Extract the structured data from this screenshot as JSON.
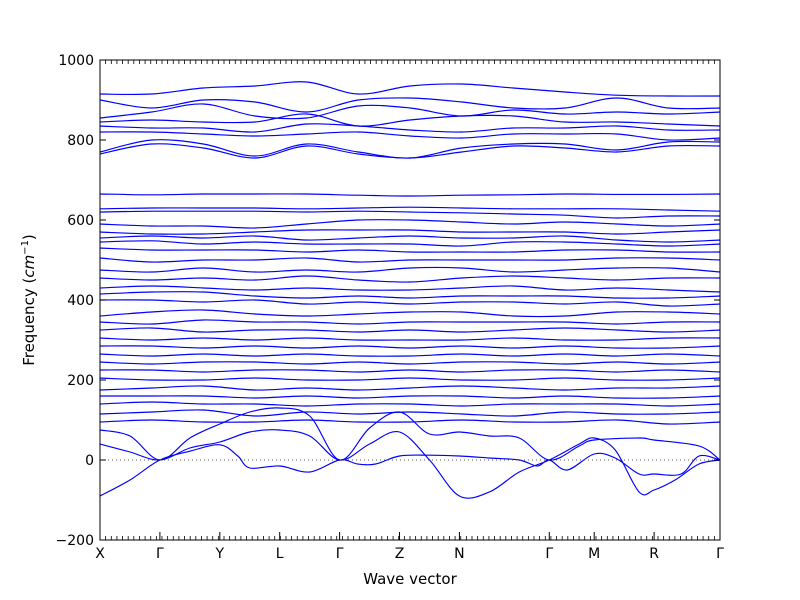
{
  "chart_data": {
    "type": "line",
    "xlabel": "Wave vector",
    "ylabel": "Frequency ",
    "ylabel_unit": "cm",
    "ylabel_unit_sup": "−1",
    "ylim": [
      -200,
      1000
    ],
    "yticks": [
      -200,
      0,
      200,
      400,
      600,
      800,
      1000
    ],
    "ytick_labels": [
      "−200",
      "0",
      "200",
      "400",
      "600",
      "800",
      "1000"
    ],
    "high_symmetry_points": [
      {
        "label": "X",
        "pos": 0
      },
      {
        "label": "Γ",
        "pos": 1
      },
      {
        "label": "Y",
        "pos": 2
      },
      {
        "label": "L",
        "pos": 3
      },
      {
        "label": "Γ",
        "pos": 4
      },
      {
        "label": "Z",
        "pos": 5
      },
      {
        "label": "N",
        "pos": 6
      },
      {
        "label": "Γ",
        "pos": 7.5
      },
      {
        "label": "M",
        "pos": 8.25
      },
      {
        "label": "R",
        "pos": 9.25
      },
      {
        "label": "Γ",
        "pos": 10.35
      }
    ],
    "zero_line": 0,
    "line_color": "#0000ff",
    "grid": false,
    "acoustic_branches": [
      {
        "x": [
          0,
          0.5,
          1,
          1.5,
          2,
          2.3,
          2.5,
          3,
          3.5,
          4,
          4.3,
          4.6,
          5,
          5.5,
          6,
          6.5,
          7,
          7.3,
          7.5,
          7.8,
          8.25,
          8.6,
          9,
          9.25,
          9.7,
          10,
          10.35
        ],
        "y": [
          -90,
          -50,
          0,
          22,
          38,
          10,
          -20,
          -15,
          -30,
          0,
          -10,
          -10,
          10,
          12,
          10,
          5,
          0,
          -15,
          0,
          -25,
          15,
          5,
          -35,
          -35,
          -35,
          10,
          0
        ]
      },
      {
        "x": [
          0,
          0.5,
          1,
          1.5,
          2,
          2.5,
          3,
          3.5,
          4,
          4.5,
          5,
          5.5,
          6,
          6.5,
          7,
          7.5,
          8,
          8.25,
          8.6,
          9,
          9.25,
          9.6,
          10,
          10.35
        ],
        "y": [
          40,
          20,
          0,
          30,
          45,
          70,
          75,
          60,
          0,
          40,
          70,
          0,
          -90,
          -80,
          -30,
          0,
          40,
          55,
          25,
          -80,
          -75,
          -50,
          -10,
          0
        ]
      },
      {
        "x": [
          0,
          0.5,
          1,
          1.5,
          2,
          2.5,
          3,
          3.5,
          4,
          4.5,
          5,
          5.5,
          6,
          6.5,
          7,
          7.5,
          8,
          8.25,
          9,
          9.25,
          10,
          10.35
        ],
        "y": [
          75,
          60,
          0,
          55,
          90,
          120,
          130,
          110,
          0,
          80,
          120,
          65,
          70,
          60,
          55,
          0,
          35,
          50,
          55,
          50,
          35,
          0
        ]
      }
    ],
    "optical_bands": [
      [
        -1,
        915,
        915,
        930,
        935,
        945,
        915,
        935,
        940,
        930,
        920,
        912,
        910,
        910
      ],
      [
        -1,
        900,
        880,
        900,
        895,
        870,
        900,
        905,
        895,
        880,
        880,
        905,
        880,
        880
      ],
      [
        -1,
        855,
        870,
        890,
        860,
        855,
        885,
        880,
        860,
        875,
        865,
        870,
        865,
        870
      ],
      [
        -1,
        845,
        850,
        845,
        845,
        865,
        835,
        850,
        860,
        860,
        845,
        845,
        840,
        835
      ],
      [
        -1,
        835,
        830,
        830,
        820,
        840,
        835,
        825,
        820,
        830,
        830,
        835,
        825,
        825
      ],
      [
        -1,
        820,
        820,
        815,
        810,
        815,
        820,
        810,
        805,
        815,
        815,
        815,
        800,
        805
      ],
      [
        -1,
        770,
        800,
        790,
        760,
        790,
        770,
        755,
        780,
        790,
        790,
        775,
        795,
        795
      ],
      [
        -1,
        765,
        790,
        780,
        755,
        785,
        765,
        755,
        770,
        785,
        780,
        770,
        785,
        785
      ],
      [
        -1,
        665,
        663,
        665,
        665,
        665,
        662,
        660,
        662,
        663,
        665,
        664,
        664,
        665
      ],
      [
        -1,
        628,
        630,
        630,
        630,
        628,
        630,
        632,
        630,
        628,
        628,
        628,
        625,
        622
      ],
      [
        -1,
        620,
        622,
        622,
        622,
        620,
        622,
        620,
        618,
        615,
        612,
        605,
        610,
        610
      ],
      [
        -1,
        590,
        585,
        585,
        580,
        590,
        600,
        600,
        595,
        590,
        595,
        590,
        585,
        590
      ],
      [
        -1,
        570,
        565,
        565,
        570,
        575,
        575,
        575,
        570,
        570,
        570,
        565,
        570,
        575
      ],
      [
        -1,
        555,
        560,
        555,
        560,
        550,
        555,
        560,
        555,
        555,
        560,
        550,
        545,
        550
      ],
      [
        -1,
        545,
        548,
        540,
        545,
        540,
        540,
        540,
        535,
        545,
        545,
        540,
        535,
        540
      ],
      [
        -1,
        530,
        525,
        525,
        525,
        520,
        525,
        520,
        520,
        520,
        525,
        525,
        520,
        520
      ],
      [
        -1,
        505,
        495,
        500,
        500,
        505,
        495,
        500,
        500,
        500,
        500,
        505,
        505,
        500
      ],
      [
        -1,
        475,
        470,
        480,
        470,
        475,
        470,
        480,
        480,
        470,
        475,
        480,
        480,
        470
      ],
      [
        -1,
        455,
        450,
        455,
        450,
        460,
        450,
        445,
        455,
        460,
        455,
        450,
        455,
        455
      ],
      [
        -1,
        430,
        435,
        430,
        425,
        430,
        425,
        425,
        430,
        435,
        425,
        430,
        425,
        420
      ],
      [
        -1,
        415,
        420,
        420,
        410,
        405,
        410,
        405,
        410,
        410,
        410,
        405,
        405,
        410
      ],
      [
        -1,
        400,
        400,
        395,
        400,
        390,
        395,
        390,
        395,
        395,
        390,
        395,
        385,
        390
      ],
      [
        -1,
        360,
        370,
        375,
        365,
        360,
        365,
        370,
        370,
        360,
        360,
        370,
        370,
        365
      ],
      [
        -1,
        345,
        340,
        350,
        345,
        345,
        340,
        345,
        345,
        345,
        345,
        340,
        345,
        345
      ],
      [
        -1,
        325,
        330,
        320,
        325,
        325,
        320,
        325,
        320,
        325,
        330,
        325,
        320,
        325
      ],
      [
        -1,
        305,
        300,
        305,
        300,
        305,
        300,
        300,
        300,
        305,
        300,
        300,
        305,
        305
      ],
      [
        -1,
        285,
        285,
        280,
        285,
        280,
        285,
        280,
        285,
        280,
        285,
        280,
        280,
        285
      ],
      [
        -1,
        265,
        260,
        265,
        260,
        265,
        260,
        260,
        265,
        260,
        265,
        260,
        265,
        260
      ],
      [
        -1,
        245,
        240,
        245,
        245,
        240,
        245,
        240,
        245,
        245,
        240,
        245,
        240,
        245
      ],
      [
        -1,
        225,
        225,
        220,
        225,
        225,
        220,
        225,
        220,
        225,
        225,
        220,
        225,
        220
      ],
      [
        -1,
        205,
        200,
        200,
        205,
        200,
        200,
        205,
        200,
        200,
        205,
        200,
        200,
        205
      ],
      [
        -1,
        175,
        180,
        185,
        175,
        180,
        175,
        180,
        185,
        180,
        175,
        180,
        180,
        185
      ],
      [
        -1,
        160,
        160,
        160,
        155,
        160,
        155,
        160,
        160,
        155,
        160,
        155,
        155,
        160
      ],
      [
        -1,
        140,
        145,
        140,
        140,
        135,
        140,
        140,
        135,
        140,
        140,
        140,
        135,
        140
      ],
      [
        -1,
        115,
        120,
        125,
        110,
        120,
        115,
        120,
        115,
        110,
        120,
        115,
        115,
        120
      ],
      [
        -1,
        95,
        100,
        95,
        95,
        100,
        95,
        95,
        100,
        95,
        95,
        100,
        90,
        95
      ]
    ]
  }
}
